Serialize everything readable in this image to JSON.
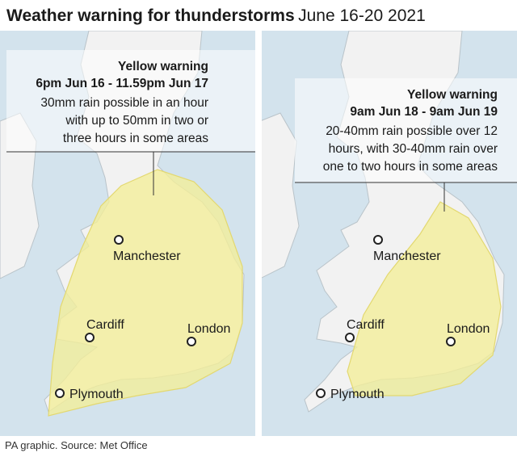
{
  "header": {
    "title": "Weather warning for thunderstorms",
    "dates": "June 16-20 2021"
  },
  "panels": [
    {
      "warning": "Yellow warning",
      "period": "6pm Jun 16 - 11.59pm Jun 17",
      "description": [
        "30mm rain possible in an hour",
        "with up to 50mm in two or",
        "three hours in some areas"
      ],
      "cities": [
        "Manchester",
        "Cardiff",
        "London",
        "Plymouth"
      ]
    },
    {
      "warning": "Yellow warning",
      "period": "9am Jun 18 - 9am Jun 19",
      "description": [
        "20-40mm rain possible over 12",
        "hours, with 30-40mm rain over",
        "one to two hours in some areas"
      ],
      "cities": [
        "Manchester",
        "Cardiff",
        "London",
        "Plymouth"
      ]
    }
  ],
  "source": "PA graphic. Source: Met Office"
}
